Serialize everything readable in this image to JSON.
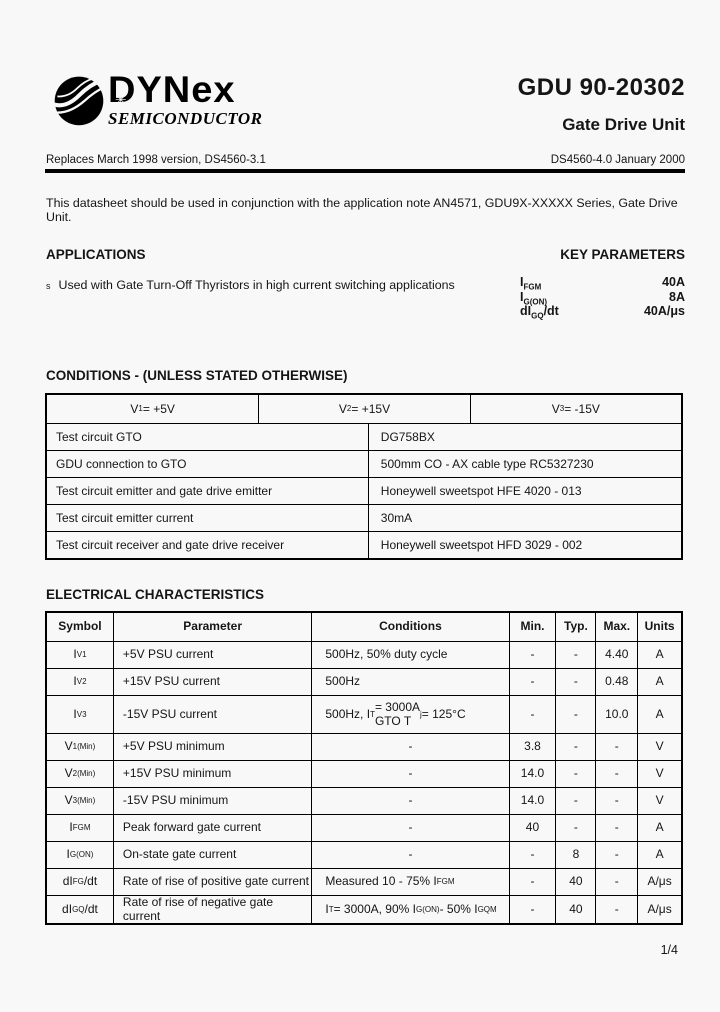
{
  "header": {
    "logo": {
      "brand": "DYNex",
      "division": "SEMICONDUCTOR",
      "globe_icon": "dynex-globe",
      "star_glyph": "✳"
    },
    "part_number": "GDU 90-20302",
    "product_type": "Gate Drive Unit",
    "replaces": "Replaces March 1998 version, DS4560-3.1",
    "doc_reference": "DS4560-4.0 January 2000"
  },
  "intro": "This datasheet should be used in conjunction with the application note AN4571, GDU9X-XXXXX Series, Gate Drive Unit.",
  "applications": {
    "heading": "APPLICATIONS",
    "bullet_marker": "s",
    "items": [
      "Used with Gate Turn-Off Thyristors in high current switching applications"
    ]
  },
  "key_parameters": {
    "heading": "KEY PARAMETERS",
    "items": [
      {
        "symbol": "I_{FGM}",
        "value": "40A"
      },
      {
        "symbol": "I_{G(ON)}",
        "value": "8A"
      },
      {
        "symbol": "dI_{GQ}/dt",
        "value": "40A/μs"
      }
    ]
  },
  "conditions": {
    "heading": "CONDITIONS - (UNLESS STATED OTHERWISE)",
    "supply_row": [
      "V_{1} = +5V",
      "V_{2} = +15V",
      "V_{3} = -15V"
    ],
    "rows": [
      {
        "label": "Test circuit GTO",
        "value": "DG758BX"
      },
      {
        "label": "GDU connection to GTO",
        "value": "500mm CO - AX cable type RC5327230"
      },
      {
        "label": "Test circuit emitter and gate drive emitter",
        "value": "Honeywell sweetspot HFE 4020 - 013"
      },
      {
        "label": "Test circuit emitter current",
        "value": "30mA"
      },
      {
        "label": "Test circuit receiver and gate drive receiver",
        "value": "Honeywell sweetspot HFD 3029 - 002"
      }
    ]
  },
  "electrical": {
    "heading": "ELECTRICAL CHARACTERISTICS",
    "columns": [
      "Symbol",
      "Parameter",
      "Conditions",
      "Min.",
      "Typ.",
      "Max.",
      "Units"
    ],
    "rows": [
      {
        "symbol": "I_{V1}",
        "parameter": "+5V PSU current",
        "conditions": "500Hz, 50% duty cycle",
        "min": "-",
        "typ": "-",
        "max": "4.40",
        "units": "A"
      },
      {
        "symbol": "I_{V2}",
        "parameter": "+15V PSU current",
        "conditions": "500Hz",
        "min": "-",
        "typ": "-",
        "max": "0.48",
        "units": "A"
      },
      {
        "symbol": "I_{V3}",
        "parameter": "-15V PSU current",
        "conditions": "500Hz, I_{T} = 3000A\nGTO T_{j} = 125°C",
        "min": "-",
        "typ": "-",
        "max": "10.0",
        "units": "A"
      },
      {
        "symbol": "V_{1(Min)}",
        "parameter": "+5V PSU minimum",
        "conditions": "-",
        "min": "3.8",
        "typ": "-",
        "max": "-",
        "units": "V"
      },
      {
        "symbol": "V_{2(Min)}",
        "parameter": "+15V PSU minimum",
        "conditions": "-",
        "min": "14.0",
        "typ": "-",
        "max": "-",
        "units": "V"
      },
      {
        "symbol": "V_{3(Min)}",
        "parameter": "-15V PSU minimum",
        "conditions": "-",
        "min": "14.0",
        "typ": "-",
        "max": "-",
        "units": "V"
      },
      {
        "symbol": "I_{FGM}",
        "parameter": "Peak forward gate current",
        "conditions": "-",
        "min": "40",
        "typ": "-",
        "max": "-",
        "units": "A"
      },
      {
        "symbol": "I_{G(ON)}",
        "parameter": "On-state gate current",
        "conditions": "-",
        "min": "-",
        "typ": "8",
        "max": "-",
        "units": "A"
      },
      {
        "symbol": "dI_{FG}/dt",
        "parameter": "Rate of rise of positive gate current",
        "conditions": "Measured  10 - 75% I_{FGM}",
        "min": "-",
        "typ": "40",
        "max": "-",
        "units": "A/μs"
      },
      {
        "symbol": "dI_{GQ}/dt",
        "parameter": "Rate of rise of negative gate current",
        "conditions": "I_{T} = 3000A,  90% I_{G(ON)} - 50% I_{GQM}",
        "min": "-",
        "typ": "40",
        "max": "-",
        "units": "A/μs"
      }
    ]
  },
  "page": {
    "number": "1/4"
  }
}
